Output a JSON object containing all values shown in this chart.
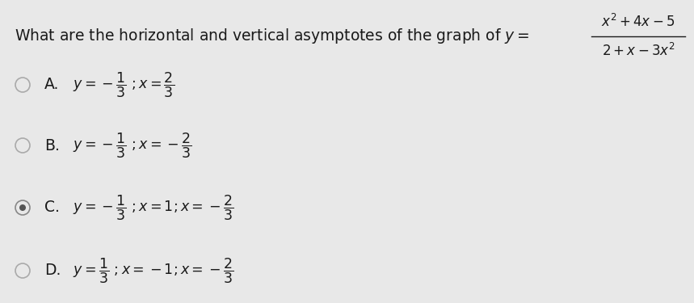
{
  "background_color": "#e8e8e8",
  "question_left": "What are the horizontal and vertical asymptotes of the graph of $y =$",
  "numerator": "$x^2 + 4x - 5$",
  "denominator": "$2 + x - 3x^2$",
  "options": [
    {
      "label": "A.",
      "text_parts": [
        "$y = -\\dfrac{1}{3}$",
        "$; x = \\dfrac{2}{3}$"
      ],
      "selected": false
    },
    {
      "label": "B.",
      "text_parts": [
        "$y = -\\dfrac{1}{3}$",
        "$; x = -\\dfrac{2}{3}$"
      ],
      "selected": false
    },
    {
      "label": "C.",
      "text_parts": [
        "$y = -\\dfrac{1}{3}$",
        "$; x = 1; x = -\\dfrac{2}{3}$"
      ],
      "selected": true
    },
    {
      "label": "D.",
      "text_parts": [
        "$y = \\dfrac{1}{3}$",
        "$; x = -1; x = -\\dfrac{2}{3}$"
      ],
      "selected": false
    }
  ],
  "text_color": "#1a1a1a",
  "circle_edge_color": "#aaaaaa",
  "selected_dot_color": "#555555",
  "fig_width": 8.59,
  "fig_height": 3.75,
  "dpi": 100
}
